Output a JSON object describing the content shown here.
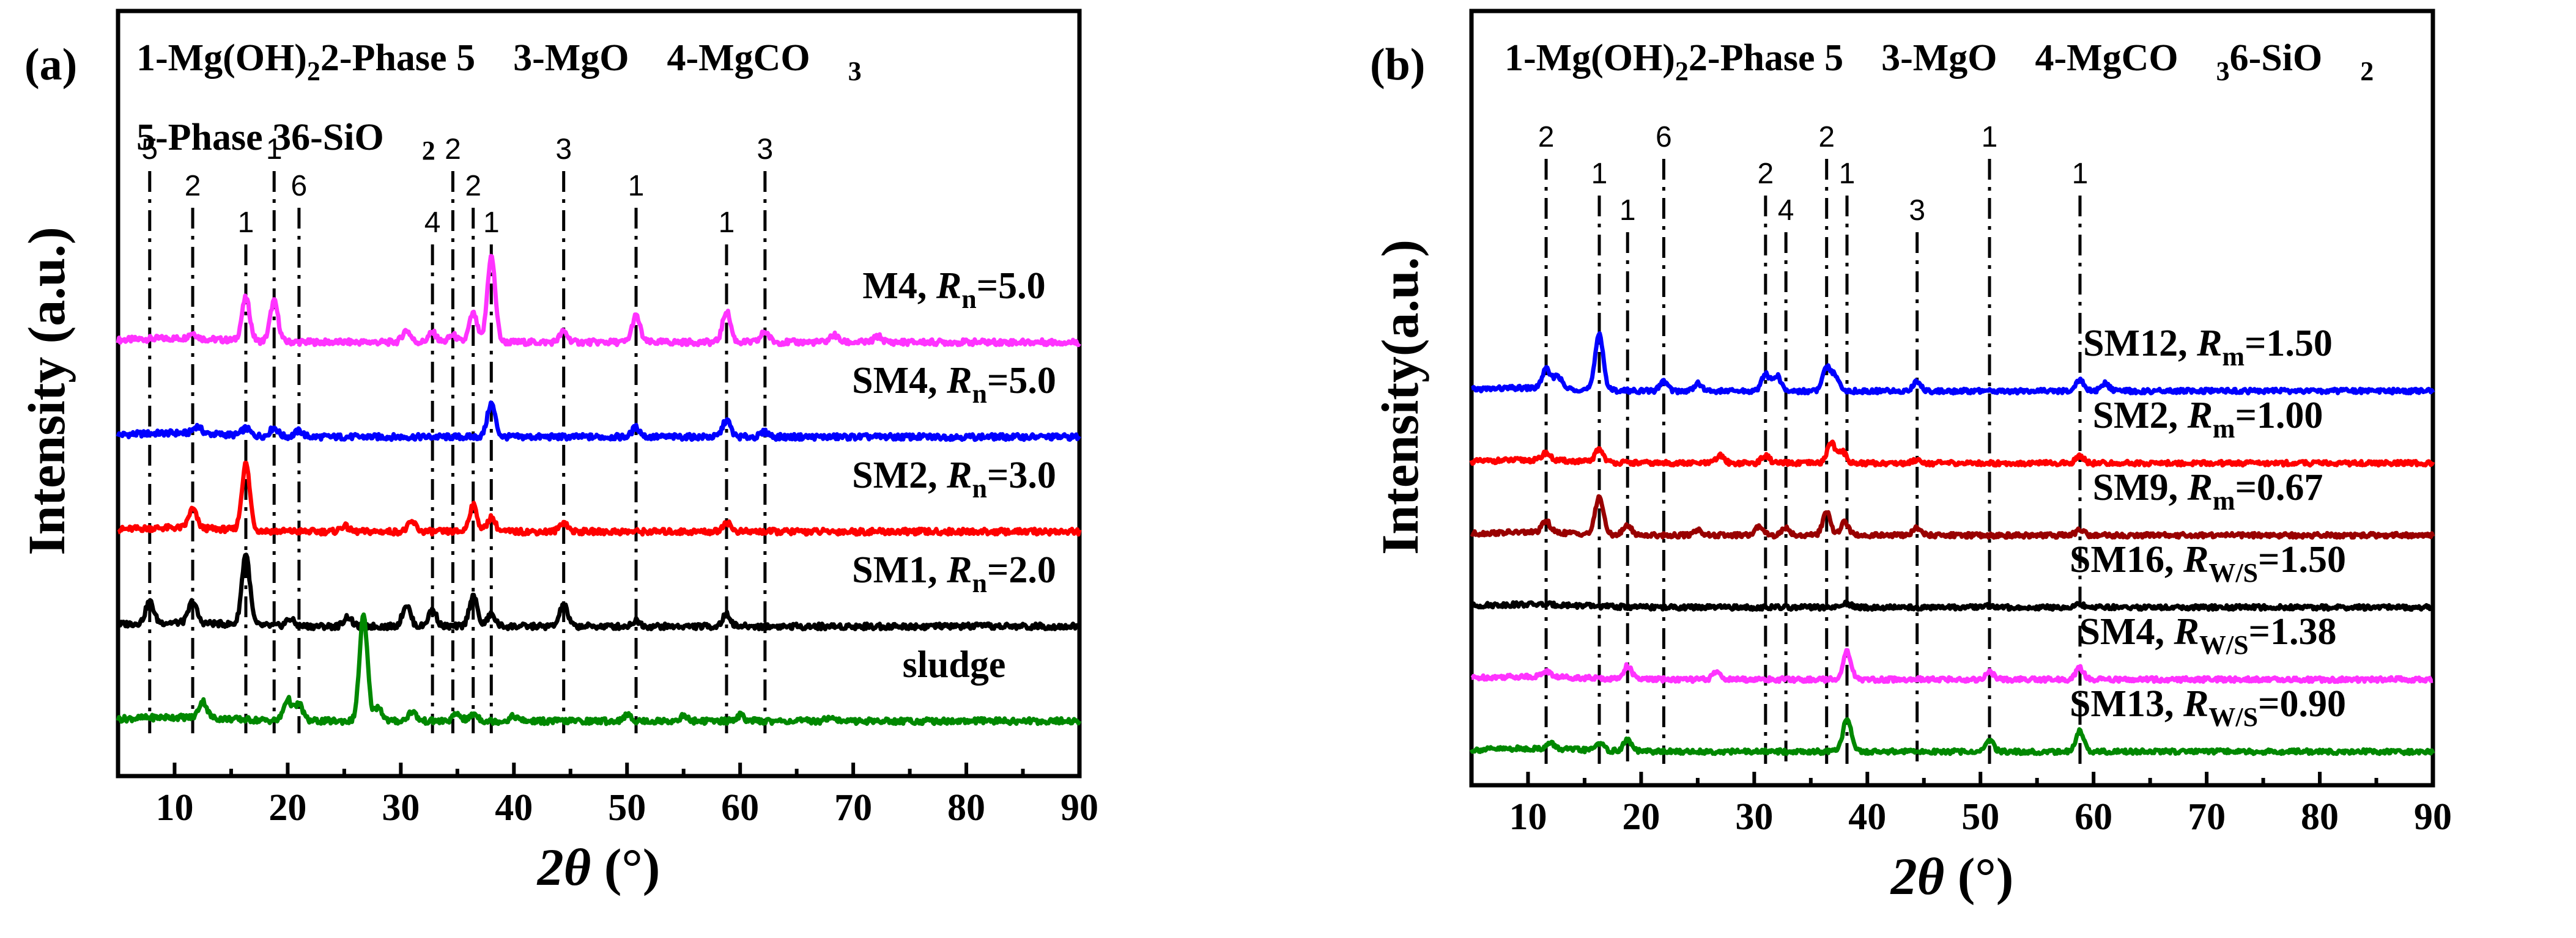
{
  "chart_data": [
    {
      "type": "line",
      "panel": "(a)",
      "xlabel": "2θ (°)",
      "ylabel": "Intensity (a.u.)",
      "xlim": [
        5,
        90
      ],
      "xticks": [
        10,
        20,
        30,
        40,
        50,
        60,
        70,
        80,
        90
      ],
      "legend_lines": [
        [
          "1-Mg(OH)",
          "2",
          "2-Phase 5",
          "3-MgO",
          "4-MgCO",
          "3"
        ],
        [
          "5-Phase 3",
          "6-SiO",
          "2"
        ]
      ],
      "series": [
        {
          "name": "M4, R",
          "sub": "n",
          "ratio": "=5.0",
          "color": "#ff33ff",
          "offset": 5.2,
          "peaks": [
            [
              11.6,
              0.12
            ],
            [
              16.3,
              0.9
            ],
            [
              18.8,
              0.85
            ],
            [
              30.5,
              0.25
            ],
            [
              32.8,
              0.2
            ],
            [
              34.6,
              0.15
            ],
            [
              36.4,
              0.6
            ],
            [
              38.0,
              1.8
            ],
            [
              44.4,
              0.22
            ],
            [
              50.8,
              0.55
            ],
            [
              58.8,
              0.65
            ],
            [
              62.2,
              0.22
            ],
            [
              68.3,
              0.15
            ],
            [
              72.2,
              0.12
            ]
          ]
        },
        {
          "name": "SM4, R",
          "sub": "n",
          "ratio": "=5.0",
          "color": "#0000ff",
          "offset": 3.9,
          "peaks": [
            [
              12.0,
              0.15
            ],
            [
              16.3,
              0.15
            ],
            [
              18.8,
              0.18
            ],
            [
              21.0,
              0.12
            ],
            [
              38.0,
              0.7
            ],
            [
              50.8,
              0.2
            ],
            [
              58.8,
              0.35
            ],
            [
              62.2,
              0.1
            ]
          ]
        },
        {
          "name": "SM2, R",
          "sub": "n",
          "ratio": "=3.0",
          "color": "#ff0000",
          "offset": 2.6,
          "peaks": [
            [
              11.6,
              0.4
            ],
            [
              16.3,
              1.4
            ],
            [
              25.0,
              0.12
            ],
            [
              31.0,
              0.2
            ],
            [
              36.4,
              0.55
            ],
            [
              38.0,
              0.3
            ],
            [
              44.4,
              0.2
            ],
            [
              58.8,
              0.2
            ]
          ]
        },
        {
          "name": "SM1, R",
          "sub": "n",
          "ratio": "=2.0",
          "color": "#000000",
          "offset": 1.3,
          "peaks": [
            [
              7.8,
              0.45
            ],
            [
              11.6,
              0.45
            ],
            [
              16.3,
              1.5
            ],
            [
              20.2,
              0.15
            ],
            [
              25.3,
              0.2
            ],
            [
              30.5,
              0.45
            ],
            [
              32.8,
              0.35
            ],
            [
              36.4,
              0.65
            ],
            [
              38.0,
              0.25
            ],
            [
              44.4,
              0.45
            ],
            [
              50.8,
              0.12
            ],
            [
              58.8,
              0.25
            ]
          ]
        },
        {
          "name": "sludge",
          "sub": "",
          "ratio": "",
          "color": "#008800",
          "offset": 0.0,
          "peaks": [
            [
              12.5,
              0.35
            ],
            [
              20.0,
              0.45
            ],
            [
              21.0,
              0.35
            ],
            [
              26.7,
              2.2
            ],
            [
              28.0,
              0.3
            ],
            [
              31.0,
              0.2
            ],
            [
              35.0,
              0.15
            ],
            [
              36.5,
              0.15
            ],
            [
              40.0,
              0.1
            ],
            [
              50.0,
              0.12
            ],
            [
              55.0,
              0.1
            ],
            [
              60.0,
              0.12
            ],
            [
              68.0,
              0.1
            ]
          ]
        }
      ],
      "reference_lines": [
        {
          "x": 7.8,
          "label": "5"
        },
        {
          "x": 11.6,
          "label": "2"
        },
        {
          "x": 16.3,
          "label": "1"
        },
        {
          "x": 18.8,
          "label": "1"
        },
        {
          "x": 21.0,
          "label": "6"
        },
        {
          "x": 32.8,
          "label": "4"
        },
        {
          "x": 34.6,
          "label": "2"
        },
        {
          "x": 36.4,
          "label": "2"
        },
        {
          "x": 38.0,
          "label": "1"
        },
        {
          "x": 44.4,
          "label": "3"
        },
        {
          "x": 50.8,
          "label": "1"
        },
        {
          "x": 58.8,
          "label": "1"
        },
        {
          "x": 62.2,
          "label": "3"
        }
      ]
    },
    {
      "type": "line",
      "panel": "(b)",
      "xlabel": "2θ (°)",
      "ylabel": "Intensity(a.u.)",
      "xlim": [
        5,
        90
      ],
      "xticks": [
        10,
        20,
        30,
        40,
        50,
        60,
        70,
        80,
        90
      ],
      "legend_lines": [
        [
          "1-Mg(OH)",
          "2",
          "2-Phase 5",
          "3-MgO",
          "4-MgCO",
          "3",
          "6-SiO",
          "2"
        ]
      ],
      "series": [
        {
          "name": "SM12, R",
          "sub": "m",
          "ratio": "=1.50",
          "color": "#0000ff",
          "offset": 6.5,
          "peaks": [
            [
              11.6,
              0.5
            ],
            [
              12.6,
              0.35
            ],
            [
              16.3,
              1.5
            ],
            [
              22.0,
              0.25
            ],
            [
              25.0,
              0.2
            ],
            [
              31.0,
              0.45
            ],
            [
              32.0,
              0.4
            ],
            [
              36.4,
              0.6
            ],
            [
              37.2,
              0.4
            ],
            [
              44.4,
              0.25
            ],
            [
              58.8,
              0.3
            ],
            [
              61.0,
              0.2
            ]
          ]
        },
        {
          "name": "SM2,  R",
          "sub": "m",
          "ratio": "=1.00",
          "color": "#ff0000",
          "offset": 5.2,
          "peaks": [
            [
              11.6,
              0.2
            ],
            [
              16.3,
              0.35
            ],
            [
              27.0,
              0.2
            ],
            [
              31.0,
              0.2
            ],
            [
              36.8,
              0.55
            ],
            [
              37.8,
              0.3
            ],
            [
              44.4,
              0.1
            ],
            [
              58.8,
              0.2
            ]
          ]
        },
        {
          "name": "SM9,  R",
          "sub": "m",
          "ratio": "=0.67",
          "color": "#990000",
          "offset": 3.9,
          "peaks": [
            [
              11.6,
              0.3
            ],
            [
              16.3,
              1.0
            ],
            [
              18.8,
              0.25
            ],
            [
              25.0,
              0.15
            ],
            [
              30.5,
              0.25
            ],
            [
              32.8,
              0.2
            ],
            [
              36.4,
              0.6
            ],
            [
              38.0,
              0.35
            ],
            [
              44.4,
              0.2
            ],
            [
              58.8,
              0.15
            ]
          ]
        },
        {
          "name": "SM16, R",
          "sub": "W/S",
          "ratio": "=1.50",
          "color": "#000000",
          "offset": 2.6,
          "peaks": [
            [
              38.2,
              0.1
            ],
            [
              50.8,
              0.05
            ],
            [
              58.8,
              0.08
            ]
          ]
        },
        {
          "name": "SM4, R",
          "sub": "W/S",
          "ratio": "=1.38",
          "color": "#ff33ff",
          "offset": 1.3,
          "peaks": [
            [
              11.6,
              0.15
            ],
            [
              18.8,
              0.35
            ],
            [
              26.7,
              0.2
            ],
            [
              38.2,
              0.75
            ],
            [
              50.8,
              0.2
            ],
            [
              58.8,
              0.3
            ]
          ]
        },
        {
          "name": "SM13, R",
          "sub": "W/S",
          "ratio": "=0.90",
          "color": "#008800",
          "offset": 0.0,
          "peaks": [
            [
              12.0,
              0.15
            ],
            [
              16.3,
              0.2
            ],
            [
              18.8,
              0.3
            ],
            [
              38.2,
              0.9
            ],
            [
              50.8,
              0.3
            ],
            [
              58.8,
              0.55
            ]
          ]
        }
      ],
      "reference_lines": [
        {
          "x": 11.6,
          "label": "2"
        },
        {
          "x": 16.3,
          "label": "1"
        },
        {
          "x": 18.8,
          "label": "1"
        },
        {
          "x": 22.0,
          "label": "6"
        },
        {
          "x": 31.0,
          "label": "2"
        },
        {
          "x": 32.8,
          "label": "4"
        },
        {
          "x": 36.4,
          "label": "2"
        },
        {
          "x": 38.2,
          "label": "1"
        },
        {
          "x": 44.4,
          "label": "3"
        },
        {
          "x": 50.8,
          "label": "1"
        },
        {
          "x": 58.8,
          "label": "1"
        }
      ]
    }
  ]
}
